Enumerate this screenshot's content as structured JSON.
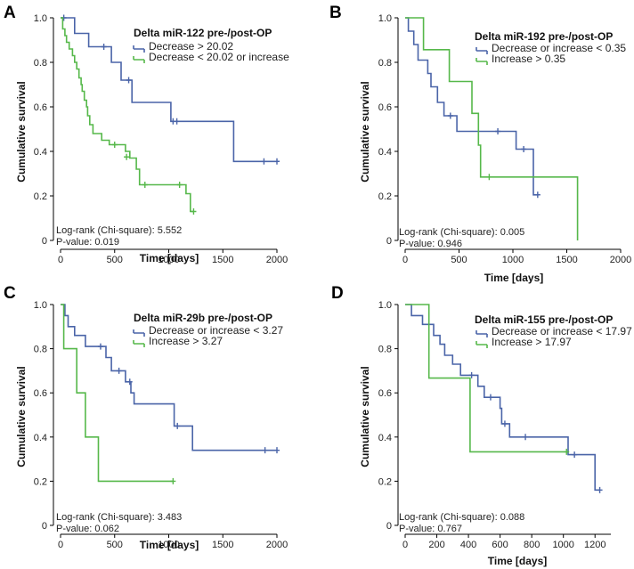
{
  "colors": {
    "blue": "#4a64a8",
    "green": "#56b84a"
  },
  "chart_data": [
    {
      "panel": "A",
      "type": "line",
      "subtype": "kaplan-meier",
      "xlabel": "Time [days]",
      "ylabel": "Cumulative survival",
      "xlim": [
        0,
        2000
      ],
      "ylim": [
        0,
        1
      ],
      "xticks": [
        0,
        500,
        1000,
        1500,
        2000
      ],
      "yticks": [
        0,
        0.2,
        0.4,
        0.6,
        0.8,
        1.0
      ],
      "ytick_labels": [
        "0",
        "0.2",
        "0.4",
        "0.6",
        "0.8",
        "1.0"
      ],
      "legend": {
        "title": "Delta miR-122 pre-/post-OP",
        "position": "top-right"
      },
      "stats": {
        "logrank": "Log-rank (Chi-square): 5.552",
        "pvalue": "P-value: 0.019"
      },
      "series": [
        {
          "name": "Decrease > 20.02",
          "color": "blue",
          "steps": [
            [
              0,
              1.0
            ],
            [
              130,
              0.93
            ],
            [
              260,
              0.87
            ],
            [
              470,
              0.8
            ],
            [
              560,
              0.72
            ],
            [
              660,
              0.62
            ],
            [
              1020,
              0.535
            ],
            [
              1600,
              0.355
            ],
            [
              2000,
              0.355
            ]
          ],
          "censored": [
            [
              30,
              1.0
            ],
            [
              400,
              0.87
            ],
            [
              630,
              0.72
            ],
            [
              1040,
              0.535
            ],
            [
              1075,
              0.535
            ],
            [
              1880,
              0.355
            ],
            [
              2000,
              0.355
            ]
          ]
        },
        {
          "name": "Decrease < 20.02 or increase",
          "color": "green",
          "steps": [
            [
              0,
              1.0
            ],
            [
              20,
              0.95
            ],
            [
              40,
              0.92
            ],
            [
              55,
              0.89
            ],
            [
              80,
              0.86
            ],
            [
              110,
              0.83
            ],
            [
              130,
              0.8
            ],
            [
              150,
              0.77
            ],
            [
              170,
              0.73
            ],
            [
              190,
              0.7
            ],
            [
              200,
              0.67
            ],
            [
              220,
              0.63
            ],
            [
              240,
              0.6
            ],
            [
              250,
              0.56
            ],
            [
              270,
              0.52
            ],
            [
              300,
              0.48
            ],
            [
              380,
              0.45
            ],
            [
              450,
              0.43
            ],
            [
              600,
              0.4
            ],
            [
              640,
              0.37
            ],
            [
              700,
              0.32
            ],
            [
              730,
              0.25
            ],
            [
              1160,
              0.21
            ],
            [
              1200,
              0.13
            ],
            [
              1230,
              0.13
            ]
          ],
          "censored": [
            [
              500,
              0.43
            ],
            [
              610,
              0.375
            ],
            [
              780,
              0.25
            ],
            [
              1100,
              0.25
            ],
            [
              1230,
              0.13
            ]
          ]
        }
      ]
    },
    {
      "panel": "B",
      "type": "line",
      "subtype": "kaplan-meier",
      "xlabel": "Time [days]",
      "ylabel": "Cumulative survival",
      "xlim": [
        0,
        2000
      ],
      "ylim": [
        0,
        1
      ],
      "xticks": [
        0,
        500,
        1000,
        1500,
        2000
      ],
      "yticks": [
        0,
        0.2,
        0.4,
        0.6,
        0.8,
        1.0
      ],
      "ytick_labels": [
        "0",
        "0.2",
        "0.4",
        "0.6",
        "0.8",
        "1.0"
      ],
      "legend": {
        "title": "Delta miR-192 pre-/post-OP",
        "position": "top-right"
      },
      "stats": {
        "logrank": "Log-rank (Chi-square): 0.005",
        "pvalue": "P-value: 0.946"
      },
      "series": [
        {
          "name": "Decrease or increase < 0.35",
          "color": "blue",
          "steps": [
            [
              0,
              1.0
            ],
            [
              30,
              0.94
            ],
            [
              80,
              0.88
            ],
            [
              120,
              0.81
            ],
            [
              210,
              0.75
            ],
            [
              240,
              0.69
            ],
            [
              300,
              0.62
            ],
            [
              360,
              0.56
            ],
            [
              480,
              0.49
            ],
            [
              1030,
              0.41
            ],
            [
              1190,
              0.205
            ],
            [
              1230,
              0.205
            ]
          ],
          "censored": [
            [
              420,
              0.56
            ],
            [
              860,
              0.49
            ],
            [
              1100,
              0.41
            ],
            [
              1230,
              0.205
            ]
          ]
        },
        {
          "name": "Increase > 0.35",
          "color": "green",
          "steps": [
            [
              0,
              1.0
            ],
            [
              170,
              0.857
            ],
            [
              410,
              0.714
            ],
            [
              620,
              0.571
            ],
            [
              680,
              0.428
            ],
            [
              700,
              0.285
            ],
            [
              1600,
              0.285
            ],
            [
              1600,
              0.0
            ]
          ],
          "censored": [
            [
              780,
              0.285
            ]
          ]
        }
      ]
    },
    {
      "panel": "C",
      "type": "line",
      "subtype": "kaplan-meier",
      "xlabel": "Time [days]",
      "ylabel": "Cumulative survival",
      "xlim": [
        0,
        2000
      ],
      "ylim": [
        0,
        1
      ],
      "xticks": [
        0,
        500,
        1000,
        1500,
        2000
      ],
      "yticks": [
        0,
        0.2,
        0.4,
        0.6,
        0.8,
        1.0
      ],
      "ytick_labels": [
        "0",
        "0.2",
        "0.4",
        "0.6",
        "0.8",
        "1.0"
      ],
      "legend": {
        "title": "Delta miR-29b pre-/post-OP",
        "position": "top-right"
      },
      "stats": {
        "logrank": "Log-rank (Chi-square): 3.483",
        "pvalue": "P-value: 0.062"
      },
      "series": [
        {
          "name": "Decrease or increase < 3.27",
          "color": "blue",
          "steps": [
            [
              0,
              1.0
            ],
            [
              40,
              0.95
            ],
            [
              70,
              0.9
            ],
            [
              130,
              0.86
            ],
            [
              230,
              0.81
            ],
            [
              420,
              0.76
            ],
            [
              470,
              0.7
            ],
            [
              600,
              0.65
            ],
            [
              650,
              0.6
            ],
            [
              680,
              0.55
            ],
            [
              1050,
              0.45
            ],
            [
              1220,
              0.34
            ],
            [
              2000,
              0.34
            ]
          ],
          "censored": [
            [
              370,
              0.81
            ],
            [
              540,
              0.7
            ],
            [
              640,
              0.65
            ],
            [
              1080,
              0.45
            ],
            [
              1890,
              0.34
            ],
            [
              2000,
              0.34
            ]
          ]
        },
        {
          "name": "Increase > 3.27",
          "color": "green",
          "steps": [
            [
              0,
              1.0
            ],
            [
              30,
              0.8
            ],
            [
              150,
              0.6
            ],
            [
              230,
              0.4
            ],
            [
              350,
              0.2
            ],
            [
              1040,
              0.2
            ]
          ],
          "censored": [
            [
              1040,
              0.2
            ]
          ]
        }
      ]
    },
    {
      "panel": "D",
      "type": "line",
      "subtype": "kaplan-meier",
      "xlabel": "Time [days]",
      "ylabel": "Cumulative survival",
      "xlim": [
        0,
        1300
      ],
      "ylim": [
        0,
        1
      ],
      "xticks": [
        0,
        200,
        400,
        600,
        800,
        1000,
        1200
      ],
      "yticks": [
        0,
        0.2,
        0.4,
        0.6,
        0.8,
        1.0
      ],
      "ytick_labels": [
        "0",
        "0.2",
        "0.4",
        "0.6",
        "0.8",
        "1.0"
      ],
      "legend": {
        "title": "Delta miR-155 pre-/post-OP",
        "position": "top-right"
      },
      "stats": {
        "logrank": "Log-rank (Chi-square): 0.088",
        "pvalue": "P-value: 0.767"
      },
      "series": [
        {
          "name": "Decrease or increase < 17.97",
          "color": "blue",
          "steps": [
            [
              0,
              1.0
            ],
            [
              40,
              0.95
            ],
            [
              110,
              0.91
            ],
            [
              180,
              0.86
            ],
            [
              220,
              0.82
            ],
            [
              250,
              0.77
            ],
            [
              300,
              0.73
            ],
            [
              350,
              0.68
            ],
            [
              460,
              0.63
            ],
            [
              500,
              0.58
            ],
            [
              600,
              0.53
            ],
            [
              610,
              0.46
            ],
            [
              660,
              0.4
            ],
            [
              1030,
              0.32
            ],
            [
              1200,
              0.16
            ],
            [
              1230,
              0.16
            ]
          ],
          "censored": [
            [
              420,
              0.68
            ],
            [
              540,
              0.58
            ],
            [
              630,
              0.46
            ],
            [
              760,
              0.4
            ],
            [
              1070,
              0.32
            ],
            [
              1230,
              0.16
            ]
          ]
        },
        {
          "name": "Increase > 17.97",
          "color": "green",
          "steps": [
            [
              0,
              1.0
            ],
            [
              150,
              0.667
            ],
            [
              410,
              0.333
            ],
            [
              1030,
              0.333
            ]
          ],
          "censored": [
            [
              1020,
              0.333
            ]
          ]
        }
      ]
    }
  ]
}
